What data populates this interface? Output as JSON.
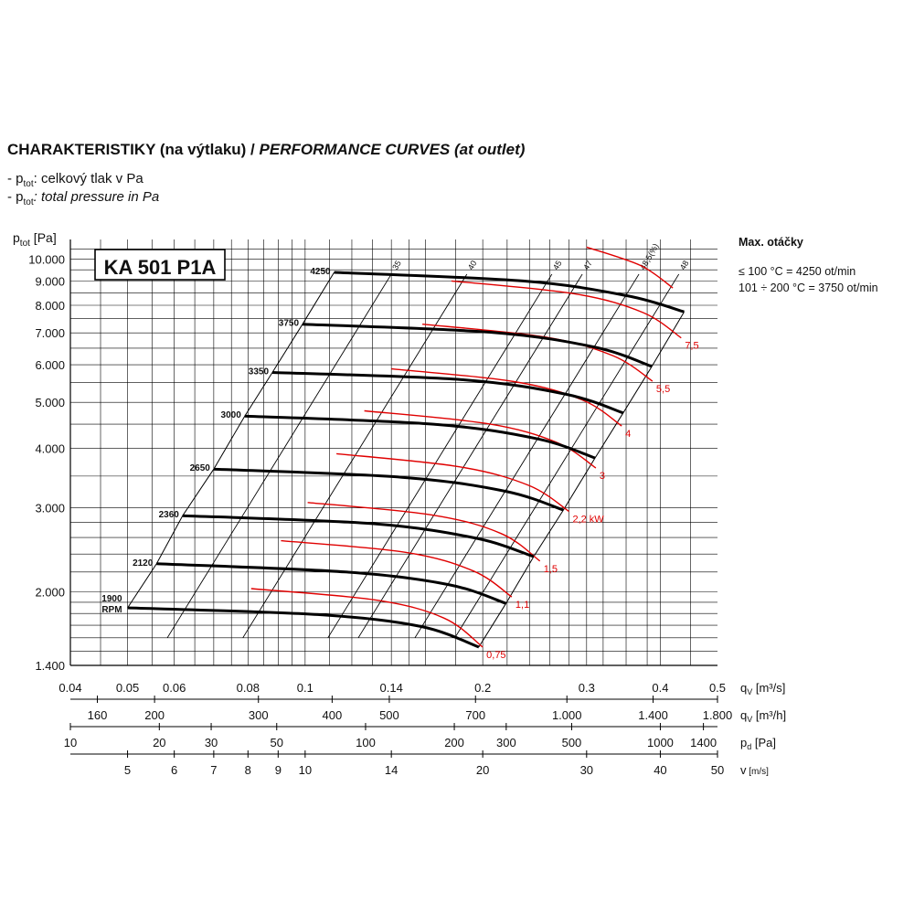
{
  "title": {
    "main": "CHARAKTERISTIKY (na výtlaku) / ",
    "italic": "PERFORMANCE CURVES (at outlet)"
  },
  "legend": {
    "line1_prefix": "- p",
    "line1_sub": "tot",
    "line1_text": ": celkový tlak v Pa",
    "line2_prefix": "- p",
    "line2_sub": "tot",
    "line2_text": ": total pressure in Pa"
  },
  "model_label": "KA 501 P1A",
  "max_speed": {
    "heading": "Max. otáčky",
    "line1": "≤ 100 °C = 4250 ot/min",
    "line2": "101 ÷ 200 °C = 3750 ot/min"
  },
  "colors": {
    "speed_curves": "#000000",
    "power_curves": "#e00000",
    "grid": "#000000"
  },
  "chart_data": {
    "type": "line",
    "x_scale": "log",
    "y_scale": "log",
    "xlim": [
      0.04,
      0.5
    ],
    "ylim": [
      1400,
      11000
    ],
    "ylabel_prefix": "p",
    "ylabel_sub": "tot",
    "ylabel_unit": " [Pa]",
    "y_ticks": [
      1400,
      2000,
      3000,
      4000,
      5000,
      6000,
      7000,
      8000,
      9000,
      10000
    ],
    "y_tick_labels": [
      "1.400",
      "2.000",
      "3.000",
      "4.000",
      "5.000",
      "6.000",
      "7.000",
      "8.000",
      "9.000",
      "10.000"
    ],
    "x_axes": [
      {
        "label_main": "q",
        "label_sub": "V",
        "label_unit": " [m³/s]",
        "ticks": [
          0.04,
          0.05,
          0.06,
          0.08,
          0.1,
          0.14,
          0.2,
          0.3,
          0.4,
          0.5
        ],
        "tick_labels": [
          "0.04",
          "0.05",
          "0.06",
          "0.08",
          "0.1",
          "0.14",
          "0.2",
          "0.3",
          "0.4",
          "0.5"
        ]
      },
      {
        "label_main": "q",
        "label_sub": "V",
        "label_unit": " [m³/h]",
        "ticks_m3s": [
          0.04444,
          0.05556,
          0.08333,
          0.11111,
          0.13889,
          0.19444,
          0.27778,
          0.38889,
          0.5
        ],
        "tick_labels": [
          "160",
          "200",
          "300",
          "400",
          "500",
          "700",
          "1.000",
          "1.400",
          "1.800"
        ]
      },
      {
        "label_main": "p",
        "label_sub": "d",
        "label_unit": " [Pa]",
        "ticks_m3s": [
          0.04,
          0.0566,
          0.0693,
          0.0895,
          0.1266,
          0.179,
          0.2192,
          0.283,
          0.4,
          0.4733
        ],
        "tick_labels": [
          "10",
          "20",
          "30",
          "50",
          "100",
          "200",
          "300",
          "500",
          "1000",
          "1400"
        ]
      },
      {
        "label_main": "v",
        "label_sub": "",
        "label_unit": " [m/s]",
        "ticks_m3s": [
          0.05,
          0.06,
          0.07,
          0.08,
          0.09,
          0.1,
          0.14,
          0.2,
          0.3,
          0.4,
          0.5
        ],
        "tick_labels": [
          "5",
          "6",
          "7",
          "8",
          "9",
          "10",
          "14",
          "20",
          "30",
          "40",
          "50"
        ]
      }
    ],
    "speed_curves": [
      {
        "name": "1900 RPM",
        "points": [
          [
            0.05,
            1850
          ],
          [
            0.105,
            1790
          ],
          [
            0.157,
            1690
          ],
          [
            0.197,
            1530
          ]
        ]
      },
      {
        "name": "2120",
        "points": [
          [
            0.056,
            2290
          ],
          [
            0.117,
            2200
          ],
          [
            0.175,
            2070
          ],
          [
            0.219,
            1890
          ]
        ]
      },
      {
        "name": "2360",
        "points": [
          [
            0.062,
            2890
          ],
          [
            0.13,
            2780
          ],
          [
            0.195,
            2590
          ],
          [
            0.244,
            2370
          ]
        ]
      },
      {
        "name": "2650",
        "points": [
          [
            0.07,
            3620
          ],
          [
            0.146,
            3480
          ],
          [
            0.219,
            3250
          ],
          [
            0.274,
            2970
          ]
        ]
      },
      {
        "name": "3000",
        "points": [
          [
            0.079,
            4680
          ],
          [
            0.165,
            4500
          ],
          [
            0.248,
            4190
          ],
          [
            0.31,
            3820
          ]
        ]
      },
      {
        "name": "3350",
        "points": [
          [
            0.088,
            5780
          ],
          [
            0.184,
            5580
          ],
          [
            0.277,
            5200
          ],
          [
            0.346,
            4750
          ]
        ]
      },
      {
        "name": "3750",
        "points": [
          [
            0.099,
            7300
          ],
          [
            0.206,
            7020
          ],
          [
            0.31,
            6530
          ],
          [
            0.387,
            5950
          ]
        ]
      },
      {
        "name": "4250",
        "points": [
          [
            0.112,
            9380
          ],
          [
            0.234,
            9000
          ],
          [
            0.351,
            8380
          ],
          [
            0.439,
            7750
          ]
        ]
      }
    ],
    "power_curves": [
      {
        "name": "0,75",
        "points": [
          [
            0.081,
            2030
          ],
          [
            0.132,
            1920
          ],
          [
            0.172,
            1760
          ],
          [
            0.2,
            1530
          ]
        ]
      },
      {
        "name": "1,1",
        "points": [
          [
            0.091,
            2560
          ],
          [
            0.148,
            2420
          ],
          [
            0.193,
            2210
          ],
          [
            0.224,
            1950
          ]
        ]
      },
      {
        "name": "1,5",
        "points": [
          [
            0.101,
            3080
          ],
          [
            0.164,
            2900
          ],
          [
            0.215,
            2650
          ],
          [
            0.25,
            2320
          ]
        ]
      },
      {
        "name": "2,2 kW",
        "points": [
          [
            0.113,
            3900
          ],
          [
            0.183,
            3660
          ],
          [
            0.24,
            3340
          ],
          [
            0.28,
            2950
          ]
        ]
      },
      {
        "name": "3",
        "points": [
          [
            0.126,
            4800
          ],
          [
            0.204,
            4510
          ],
          [
            0.267,
            4120
          ],
          [
            0.311,
            3640
          ]
        ]
      },
      {
        "name": "4",
        "points": [
          [
            0.14,
            5880
          ],
          [
            0.226,
            5530
          ],
          [
            0.296,
            5050
          ],
          [
            0.344,
            4460
          ]
        ]
      },
      {
        "name": "5,5",
        "points": [
          [
            0.158,
            7300
          ],
          [
            0.255,
            6860
          ],
          [
            0.333,
            6260
          ],
          [
            0.388,
            5540
          ]
        ]
      },
      {
        "name": "7,5",
        "points": [
          [
            0.177,
            9000
          ],
          [
            0.286,
            8460
          ],
          [
            0.374,
            7720
          ],
          [
            0.434,
            6830
          ]
        ]
      }
    ],
    "efficiency_lines": [
      {
        "name": "35",
        "x_at_top": 0.14
      },
      {
        "name": "40",
        "x_at_top": 0.188
      },
      {
        "name": "45",
        "x_at_top": 0.262
      },
      {
        "name": "47",
        "x_at_top": 0.295
      },
      {
        "name": "48,5(%)",
        "x_at_top": 0.368
      },
      {
        "name": "48",
        "x_at_top": 0.43
      }
    ]
  }
}
